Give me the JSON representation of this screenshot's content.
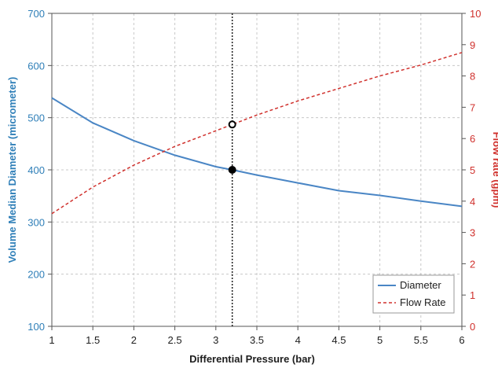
{
  "chart_data": {
    "type": "line",
    "title": "",
    "xlabel": "Differential Pressure (bar)",
    "ylabel_left": "Volume Median Diameter (micrometer)",
    "ylabel_right": "Flow rate (gpm)",
    "xlim": [
      1,
      6
    ],
    "ylim_left": [
      100,
      700
    ],
    "ylim_right": [
      0,
      10
    ],
    "x_ticks": [
      "1",
      "1.5",
      "2",
      "2.5",
      "3",
      "3.5",
      "4",
      "4.5",
      "5",
      "5.5",
      "6"
    ],
    "y_left_ticks": [
      "100",
      "200",
      "300",
      "400",
      "500",
      "600",
      "700"
    ],
    "y_right_ticks": [
      "0",
      "1",
      "2",
      "3",
      "4",
      "5",
      "6",
      "7",
      "8",
      "9",
      "10"
    ],
    "grid": true,
    "legend_position": "bottom-right",
    "series": [
      {
        "name": "Diameter",
        "axis": "left",
        "color": "#4a86c5",
        "style": "solid",
        "x": [
          1,
          1.5,
          2,
          2.5,
          3,
          3.2,
          3.5,
          4,
          4.5,
          5,
          5.5,
          6
        ],
        "y": [
          538,
          490,
          456,
          428,
          406,
          400,
          390,
          375,
          360,
          351,
          340,
          330
        ]
      },
      {
        "name": "Flow Rate",
        "axis": "right",
        "color": "#d0312d",
        "style": "dashed",
        "x": [
          1,
          1.5,
          2,
          2.5,
          3,
          3.2,
          3.5,
          4,
          4.5,
          5,
          5.5,
          6
        ],
        "y": [
          3.6,
          4.45,
          5.15,
          5.75,
          6.25,
          6.45,
          6.75,
          7.2,
          7.6,
          8.0,
          8.35,
          8.75
        ]
      }
    ],
    "reference_line": {
      "x": 3.2,
      "color": "#1e1e1e",
      "style": "dotted"
    },
    "markers": [
      {
        "x": 3.2,
        "y": 400,
        "axis": "left",
        "style": "filled",
        "color": "#000000"
      },
      {
        "x": 3.2,
        "y": 6.45,
        "axis": "right",
        "style": "hollow",
        "color": "#000000"
      }
    ],
    "colors": {
      "left_axis": "#2f7fb8",
      "right_axis": "#d0312d",
      "grid": "#c8c8c8",
      "plot_border": "#555555"
    }
  }
}
